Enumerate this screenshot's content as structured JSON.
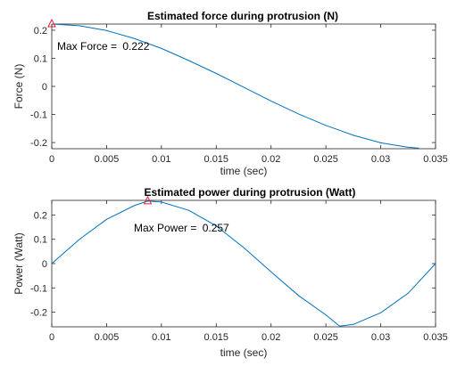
{
  "chart_data": [
    {
      "type": "line",
      "title": "Estimated force during protrusion (N)",
      "xlabel": "time (sec)",
      "ylabel": "Force (N)",
      "xlim": [
        0,
        0.035
      ],
      "ylim": [
        -0.222,
        0.222
      ],
      "xticks": [
        "0",
        "0.005",
        "0.01",
        "0.015",
        "0.02",
        "0.025",
        "0.03",
        "0.035"
      ],
      "yticks": [
        "0.2",
        "0.1",
        "0",
        "-0.1",
        "-0.2"
      ],
      "ytick_values": [
        0.2,
        0.1,
        0,
        -0.1,
        -0.2
      ],
      "grid": false,
      "line_color": "#0072BD",
      "marker_color": "#e8202a",
      "series": [
        {
          "x": [
            0,
            0.0025,
            0.005,
            0.0075,
            0.01,
            0.0125,
            0.015,
            0.0175,
            0.02,
            0.0225,
            0.025,
            0.0275,
            0.03,
            0.0325,
            0.0335
          ],
          "values": [
            0.222,
            0.216,
            0.199,
            0.171,
            0.135,
            0.092,
            0.046,
            -0.003,
            -0.052,
            -0.098,
            -0.139,
            -0.174,
            -0.201,
            -0.217,
            -0.22
          ]
        }
      ],
      "max_marker": {
        "x": 0,
        "y": 0.222
      },
      "annotation": {
        "label": "Max Force = ",
        "value": "0.222"
      }
    },
    {
      "type": "line",
      "title": "Estimated power during protrusion (Watt)",
      "xlabel": "time (sec)",
      "ylabel": "Power (Watt)",
      "xlim": [
        0,
        0.035
      ],
      "ylim": [
        -0.26,
        0.26
      ],
      "xticks": [
        "0",
        "0.005",
        "0.01",
        "0.015",
        "0.02",
        "0.025",
        "0.03",
        "0.035"
      ],
      "yticks": [
        "0.2",
        "0.1",
        "0",
        "-0.1",
        "-0.2"
      ],
      "ytick_values": [
        0.2,
        0.1,
        0,
        -0.1,
        -0.2
      ],
      "grid": false,
      "line_color": "#0072BD",
      "marker_color": "#e8202a",
      "series": [
        {
          "x": [
            0,
            0.0025,
            0.005,
            0.0075,
            0.00875,
            0.01,
            0.0125,
            0.015,
            0.0175,
            0.02,
            0.0225,
            0.025,
            0.02625,
            0.0275,
            0.03,
            0.0325,
            0.035
          ],
          "values": [
            0,
            0.099,
            0.182,
            0.238,
            0.257,
            0.253,
            0.219,
            0.155,
            0.066,
            -0.034,
            -0.131,
            -0.211,
            -0.257,
            -0.25,
            -0.202,
            -0.122,
            0
          ]
        }
      ],
      "max_marker": {
        "x": 0.00875,
        "y": 0.257
      },
      "annotation": {
        "label": "Max Power = ",
        "value": "0.257"
      }
    }
  ]
}
